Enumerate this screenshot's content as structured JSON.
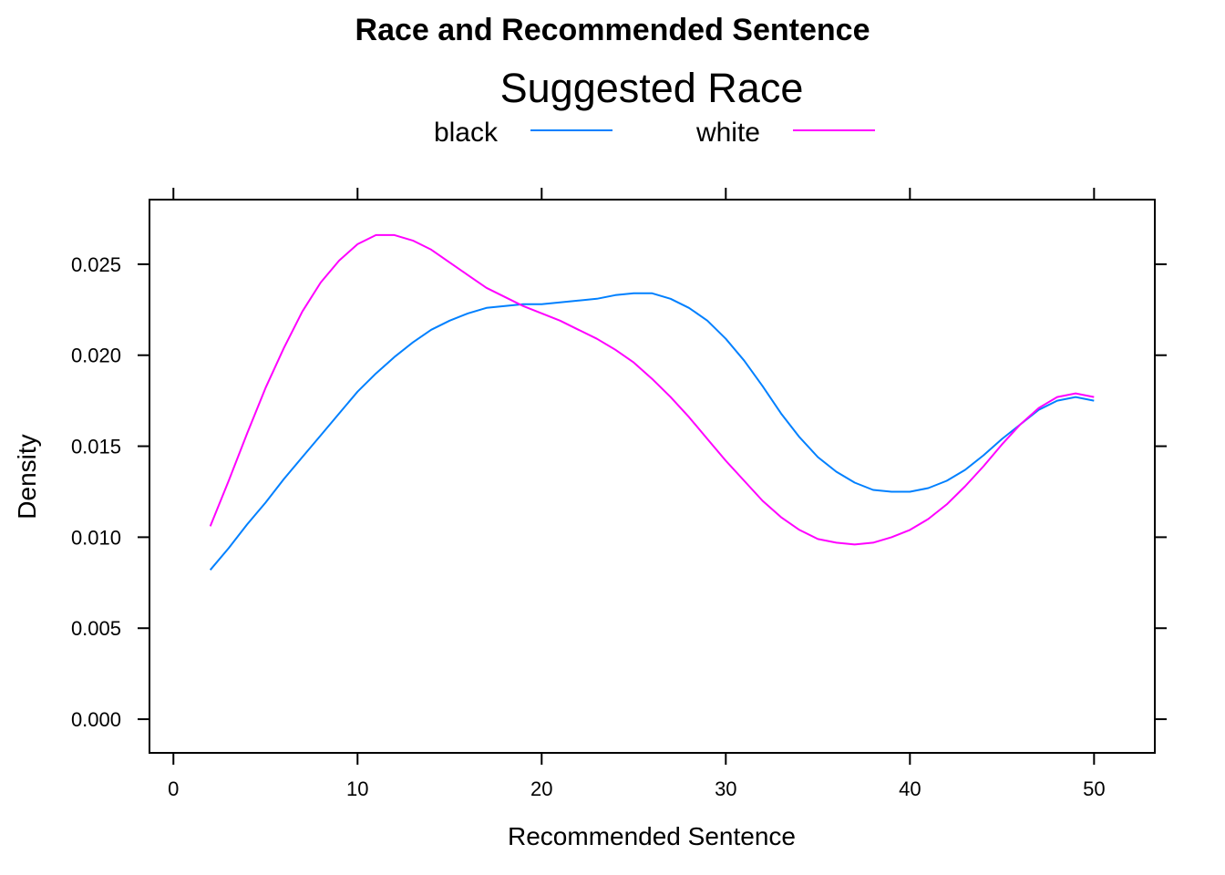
{
  "chart_data": {
    "type": "line",
    "title": "Race and Recommended Sentence",
    "legend": {
      "title": "Suggested Race",
      "placement": "top"
    },
    "xlabel": "Recommended Sentence",
    "ylabel": "Density",
    "xlim": [
      -1.3,
      53.3
    ],
    "ylim": [
      -0.00185,
      0.02855
    ],
    "xticks": [
      0,
      10,
      20,
      30,
      40,
      50
    ],
    "xtick_labels": [
      "0",
      "10",
      "20",
      "30",
      "40",
      "50"
    ],
    "yticks": [
      0.0,
      0.005,
      0.01,
      0.015,
      0.02,
      0.025
    ],
    "ytick_labels": [
      "0.000",
      "0.005",
      "0.010",
      "0.015",
      "0.020",
      "0.025"
    ],
    "grid": false,
    "series": [
      {
        "name": "black",
        "color": "#0080ff",
        "x": [
          2,
          3,
          4,
          5,
          6,
          7,
          8,
          9,
          10,
          11,
          12,
          13,
          14,
          15,
          16,
          17,
          18,
          19,
          20,
          21,
          22,
          23,
          24,
          25,
          26,
          27,
          28,
          29,
          30,
          31,
          32,
          33,
          34,
          35,
          36,
          37,
          38,
          39,
          40,
          41,
          42,
          43,
          44,
          45,
          46,
          47,
          48,
          49,
          50
        ],
        "y": [
          0.0082,
          0.0094,
          0.0107,
          0.0119,
          0.0132,
          0.0144,
          0.0156,
          0.0168,
          0.018,
          0.019,
          0.0199,
          0.0207,
          0.0214,
          0.0219,
          0.0223,
          0.0226,
          0.0227,
          0.0228,
          0.0228,
          0.0229,
          0.023,
          0.0231,
          0.0233,
          0.0234,
          0.0234,
          0.0231,
          0.0226,
          0.0219,
          0.0209,
          0.0197,
          0.0183,
          0.0168,
          0.0155,
          0.0144,
          0.0136,
          0.013,
          0.0126,
          0.0125,
          0.0125,
          0.0127,
          0.0131,
          0.0137,
          0.0145,
          0.0154,
          0.0162,
          0.017,
          0.0175,
          0.0177,
          0.0175
        ]
      },
      {
        "name": "white",
        "color": "#ff00ff",
        "x": [
          2,
          3,
          4,
          5,
          6,
          7,
          8,
          9,
          10,
          11,
          12,
          13,
          14,
          15,
          16,
          17,
          18,
          19,
          20,
          21,
          22,
          23,
          24,
          25,
          26,
          27,
          28,
          29,
          30,
          31,
          32,
          33,
          34,
          35,
          36,
          37,
          38,
          39,
          40,
          41,
          42,
          43,
          44,
          45,
          46,
          47,
          48,
          49,
          50
        ],
        "y": [
          0.0106,
          0.0131,
          0.0157,
          0.0182,
          0.0204,
          0.0224,
          0.024,
          0.0252,
          0.0261,
          0.0266,
          0.0266,
          0.0263,
          0.0258,
          0.0251,
          0.0244,
          0.0237,
          0.0232,
          0.0227,
          0.0223,
          0.0219,
          0.0214,
          0.0209,
          0.0203,
          0.0196,
          0.0187,
          0.0177,
          0.0166,
          0.0154,
          0.0142,
          0.0131,
          0.012,
          0.0111,
          0.0104,
          0.0099,
          0.0097,
          0.0096,
          0.0097,
          0.01,
          0.0104,
          0.011,
          0.0118,
          0.0128,
          0.0139,
          0.0151,
          0.0162,
          0.0171,
          0.0177,
          0.0179,
          0.0177
        ]
      }
    ]
  }
}
